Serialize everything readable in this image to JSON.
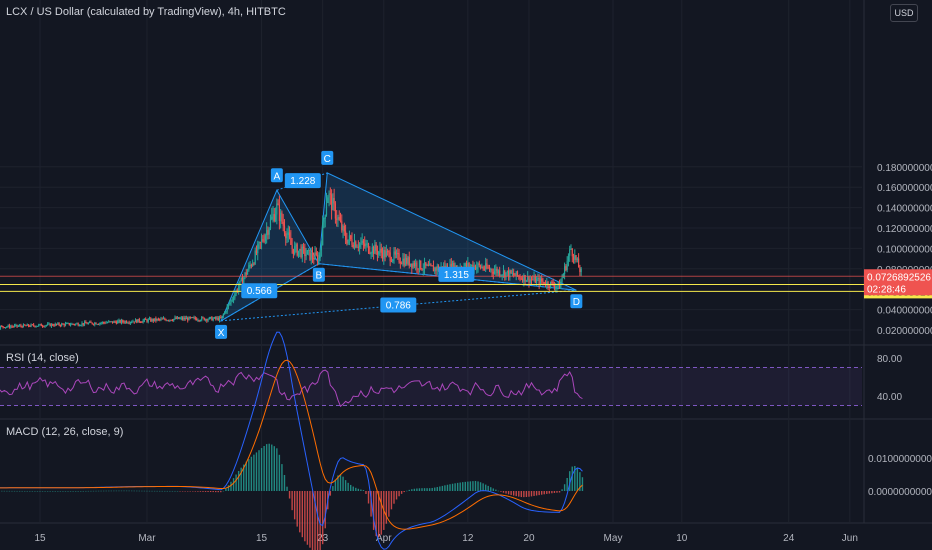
{
  "header": {
    "title": "LCX / US Dollar (calculated by TradingView), 4h, HITBTC",
    "currency": "USD"
  },
  "colors": {
    "bg": "#131722",
    "up": "#26a69a",
    "down": "#ef5350",
    "pattern": "#2196f3",
    "rsi": "#ab47bc",
    "macd": "#2962ff",
    "signal": "#ff6d00",
    "current": "#ef5350",
    "level": "#f5e84b"
  },
  "chart_data": [
    {
      "type": "candlestick",
      "title": "LCX / US Dollar (calculated by TradingView), 4h, HITBTC",
      "price_axis": [
        "0.1800000000",
        "0.1600000000",
        "0.1400000000",
        "0.1200000000",
        "0.1000000000",
        "0.0800000000",
        "0.0400000000",
        "0.0200000000"
      ],
      "price_axis_values": [
        0.18,
        0.16,
        0.14,
        0.12,
        0.1,
        0.08,
        0.04,
        0.02
      ],
      "time_axis": [
        "15",
        "Mar",
        "15",
        "23",
        "Apr",
        "12",
        "20",
        "May",
        "10",
        "24",
        "Jun"
      ],
      "time_axis_days": [
        15,
        29,
        44,
        52,
        60,
        71,
        79,
        90,
        99,
        113,
        121
      ],
      "current_price": {
        "value": "0.0726892526",
        "countdown": "02:28:46"
      },
      "horizontal_levels": [
        {
          "value": 0.0646201337,
          "label": "0.0646201337"
        },
        {
          "value": 0.0578535816,
          "label": "0.0578535816"
        }
      ],
      "harmonic_pattern": {
        "points": [
          {
            "name": "X",
            "day": 38.7,
            "price": 0.029
          },
          {
            "name": "A",
            "day": 46.0,
            "price": 0.157
          },
          {
            "name": "B",
            "day": 51.5,
            "price": 0.085
          },
          {
            "name": "C",
            "day": 52.6,
            "price": 0.174
          },
          {
            "name": "D",
            "day": 85.2,
            "price": 0.059
          }
        ],
        "ratios": [
          {
            "label": "1.228",
            "day": 49.4,
            "price": 0.166
          },
          {
            "label": "0.566",
            "day": 43.7,
            "price": 0.058
          },
          {
            "label": "1.315",
            "day": 69.5,
            "price": 0.074
          },
          {
            "label": "0.786",
            "day": 61.9,
            "price": 0.044
          }
        ]
      }
    },
    {
      "type": "line",
      "title": "RSI (14, close)",
      "y_axis": [
        "80.00",
        "40.00"
      ],
      "y_axis_values": [
        80,
        40
      ],
      "band": [
        70,
        30
      ]
    },
    {
      "type": "line",
      "title": "MACD (12, 26, close, 9)",
      "y_axis": [
        "0.0100000000",
        "0.0000000000"
      ],
      "y_axis_values": [
        0.01,
        0
      ],
      "series": [
        {
          "name": "MACD"
        },
        {
          "name": "Signal"
        }
      ]
    }
  ]
}
